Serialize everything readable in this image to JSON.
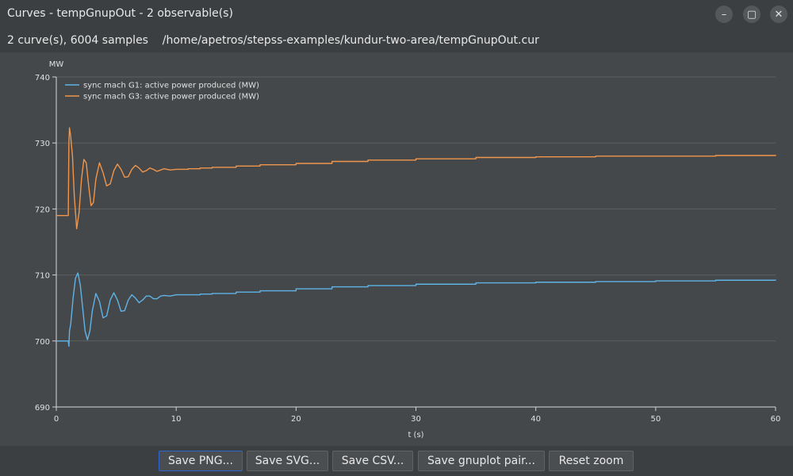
{
  "window": {
    "title": "Curves - tempGnupOut - 2 observable(s)",
    "minimize_glyph": "–",
    "maximize_glyph": "▢",
    "close_glyph": "✕"
  },
  "info": {
    "summary": "2 curve(s), 6004 samples",
    "path": "/home/apetros/stepss-examples/kundur-two-area/tempGnupOut.cur"
  },
  "buttons": {
    "save_png": "Save PNG...",
    "save_svg": "Save SVG...",
    "save_csv": "Save CSV...",
    "save_gnuplot": "Save gnuplot pair...",
    "reset_zoom": "Reset zoom"
  },
  "chart_data": {
    "type": "line",
    "xlabel": "t (s)",
    "ylabel": "MW",
    "xlim": [
      0,
      60
    ],
    "ylim": [
      690,
      740
    ],
    "xticks": [
      0,
      10,
      20,
      30,
      40,
      50,
      60
    ],
    "yticks": [
      690,
      700,
      710,
      720,
      730,
      740
    ],
    "grid": true,
    "legend_position": "top-left",
    "series": [
      {
        "name": "sync mach G1: active power produced (MW)",
        "color": "#5fb3e6",
        "x": [
          0,
          1.0,
          1.05,
          1.1,
          1.2,
          1.4,
          1.6,
          1.8,
          2.0,
          2.2,
          2.4,
          2.6,
          2.8,
          3.0,
          3.3,
          3.6,
          3.9,
          4.2,
          4.5,
          4.8,
          5.1,
          5.4,
          5.7,
          6.0,
          6.3,
          6.6,
          6.9,
          7.2,
          7.5,
          7.8,
          8.1,
          8.4,
          8.7,
          9.0,
          9.5,
          10.0,
          11,
          12,
          13,
          15,
          17,
          20,
          23,
          26,
          30,
          35,
          40,
          45,
          50,
          55,
          60
        ],
        "values": [
          700.0,
          700.0,
          699.2,
          701.5,
          702.5,
          706.5,
          709.5,
          710.3,
          708.5,
          705.0,
          701.5,
          700.2,
          701.5,
          704.5,
          707.2,
          706.0,
          703.5,
          703.8,
          706.2,
          707.3,
          706.2,
          704.5,
          704.6,
          706.2,
          707.0,
          706.5,
          705.8,
          706.2,
          706.8,
          706.8,
          706.4,
          706.4,
          706.8,
          706.9,
          706.8,
          707.0,
          707.0,
          707.1,
          707.2,
          707.4,
          707.6,
          707.9,
          708.2,
          708.4,
          708.6,
          708.8,
          708.9,
          709.0,
          709.1,
          709.2,
          709.3
        ]
      },
      {
        "name": "sync mach G3: active power produced (MW)",
        "color": "#f0954b",
        "x": [
          0,
          1.0,
          1.05,
          1.1,
          1.2,
          1.35,
          1.5,
          1.7,
          1.9,
          2.1,
          2.3,
          2.5,
          2.7,
          2.9,
          3.1,
          3.3,
          3.6,
          3.9,
          4.2,
          4.5,
          4.8,
          5.1,
          5.4,
          5.7,
          6.0,
          6.3,
          6.6,
          6.9,
          7.2,
          7.5,
          7.8,
          8.1,
          8.4,
          8.7,
          9.0,
          9.5,
          10.0,
          11,
          12,
          13,
          15,
          17,
          20,
          23,
          26,
          30,
          35,
          40,
          45,
          50,
          55,
          60
        ],
        "values": [
          719.0,
          719.0,
          730.0,
          732.3,
          731.0,
          728.0,
          722.0,
          717.0,
          719.5,
          724.5,
          727.5,
          727.0,
          723.5,
          720.5,
          721.0,
          724.5,
          727.0,
          725.5,
          723.5,
          723.8,
          725.8,
          726.8,
          726.0,
          724.8,
          724.9,
          726.0,
          726.6,
          726.2,
          725.6,
          725.8,
          726.2,
          726.0,
          725.7,
          725.9,
          726.1,
          725.9,
          726.0,
          726.1,
          726.2,
          726.3,
          726.5,
          726.7,
          726.9,
          727.2,
          727.4,
          727.6,
          727.8,
          727.9,
          728.0,
          728.0,
          728.1,
          728.2
        ]
      }
    ]
  }
}
